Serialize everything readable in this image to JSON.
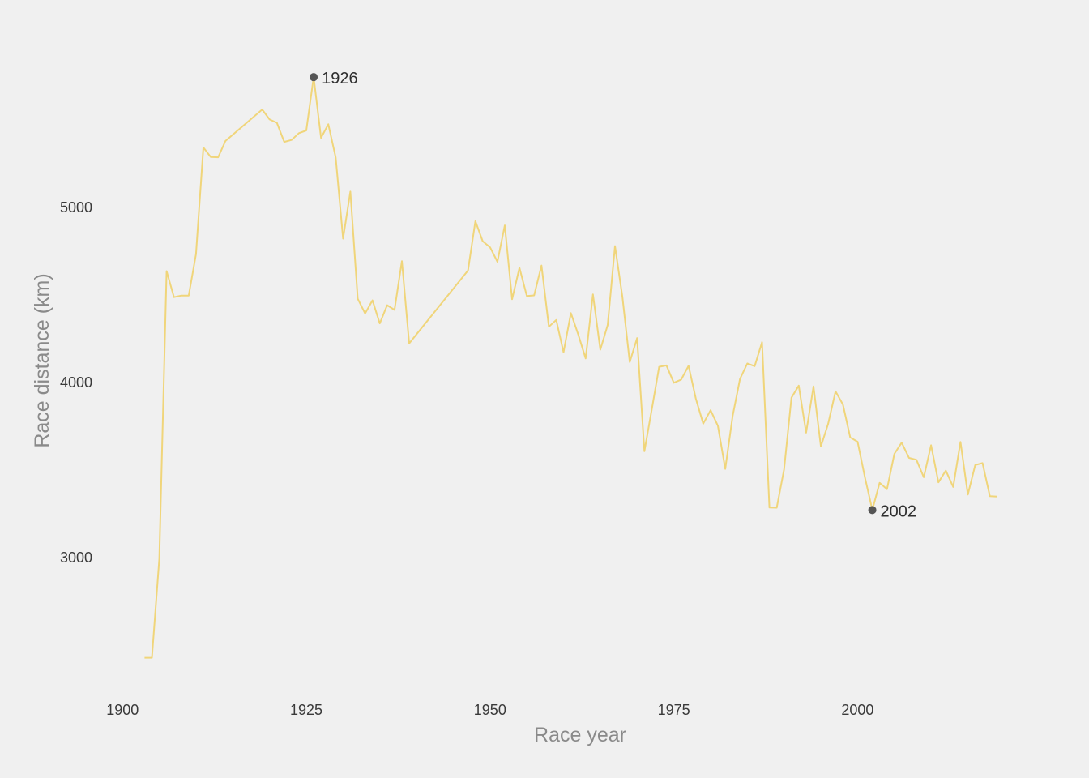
{
  "chart_data": {
    "type": "line",
    "xlabel": "Race year",
    "ylabel": "Race distance (km)",
    "xlim": [
      1897,
      2022
    ],
    "ylim": [
      2380,
      5880
    ],
    "x_ticks": [
      1900,
      1925,
      1950,
      1975,
      2000
    ],
    "y_ticks": [
      3000,
      4000,
      5000
    ],
    "grid": false,
    "line_color": "#f0d57a",
    "marker_color": "#555555",
    "series": [
      {
        "x": [
          1903,
          1904,
          1905,
          1906,
          1907,
          1908,
          1909,
          1910,
          1911,
          1912,
          1913,
          1914,
          1919,
          1920,
          1921,
          1922,
          1923,
          1924,
          1925,
          1926,
          1927,
          1928,
          1929,
          1930,
          1931,
          1932,
          1933,
          1934,
          1935,
          1936,
          1937,
          1938,
          1939,
          1947,
          1948,
          1949,
          1950,
          1951,
          1952,
          1953,
          1954,
          1955,
          1956,
          1957,
          1958,
          1959,
          1960,
          1961,
          1962,
          1963,
          1964,
          1965,
          1966,
          1967,
          1968,
          1969,
          1970,
          1971,
          1972,
          1973,
          1974,
          1975,
          1976,
          1977,
          1978,
          1979,
          1980,
          1981,
          1982,
          1983,
          1984,
          1985,
          1986,
          1987,
          1988,
          1989,
          1990,
          1991,
          1992,
          1993,
          1994,
          1995,
          1996,
          1997,
          1998,
          1999,
          2000,
          2001,
          2002,
          2003,
          2004,
          2005,
          2006,
          2007,
          2008,
          2009,
          2010,
          2011,
          2012,
          2013,
          2014,
          2015,
          2016,
          2017,
          2018,
          2019
        ],
        "y": [
          2428,
          2428,
          2994,
          4637,
          4488,
          4497,
          4497,
          4734,
          5343,
          5289,
          5287,
          5380,
          5560,
          5503,
          5484,
          5375,
          5386,
          5425,
          5440,
          5745,
          5398,
          5476,
          5286,
          4822,
          5091,
          4479,
          4395,
          4470,
          4338,
          4442,
          4415,
          4694,
          4224,
          4640,
          4922,
          4808,
          4773,
          4690,
          4898,
          4476,
          4656,
          4495,
          4498,
          4669,
          4319,
          4358,
          4173,
          4397,
          4274,
          4138,
          4504,
          4188,
          4329,
          4780,
          4492,
          4117,
          4254,
          3608,
          3846,
          4090,
          4098,
          3999,
          4017,
          4096,
          3908,
          3765,
          3842,
          3753,
          3507,
          3809,
          4021,
          4109,
          4094,
          4231,
          3286,
          3285,
          3504,
          3914,
          3983,
          3714,
          3978,
          3635,
          3765,
          3950,
          3875,
          3687,
          3662,
          3458,
          3272,
          3427,
          3391,
          3593,
          3657,
          3570,
          3559,
          3459,
          3642,
          3430,
          3497,
          3404,
          3661,
          3360,
          3529,
          3540,
          3351,
          3349
        ]
      }
    ],
    "annotations": [
      {
        "label": "1926",
        "x": 1926,
        "y": 5745
      },
      {
        "label": "2002",
        "x": 2002,
        "y": 3272
      }
    ]
  }
}
